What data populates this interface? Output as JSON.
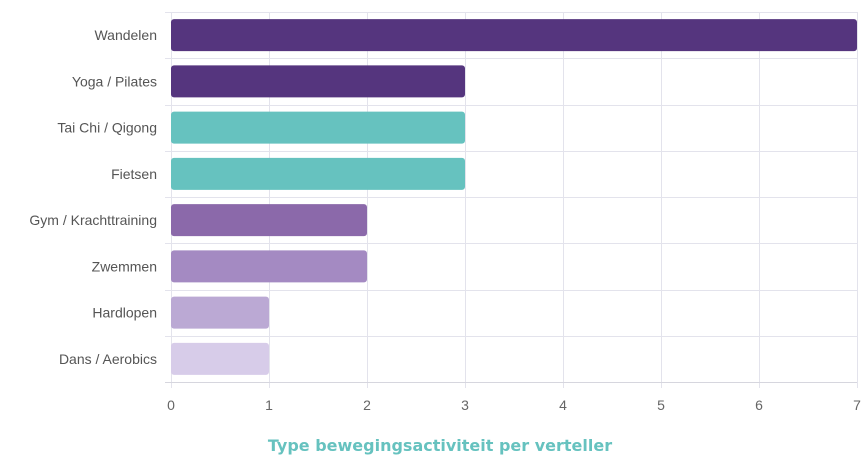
{
  "chart_data": {
    "type": "bar",
    "orientation": "horizontal",
    "title": "",
    "caption": "Type bewegingsactiviteit per verteller",
    "xlabel": "",
    "ylabel": "",
    "categories": [
      "Wandelen",
      "Yoga / Pilates",
      "Tai Chi / Qigong",
      "Fietsen",
      "Gym / Krachttraining",
      "Zwemmen",
      "Hardlopen",
      "Dans / Aerobics"
    ],
    "values": [
      7,
      3,
      3,
      3,
      2,
      2,
      1,
      1
    ],
    "bar_colors": [
      "#55357e",
      "#55357e",
      "#66c2bf",
      "#66c2bf",
      "#8b69aa",
      "#a48ac2",
      "#bba9d4",
      "#d7cce9"
    ],
    "xlim": [
      0,
      7
    ],
    "xticks": [
      "0",
      "1",
      "2",
      "3",
      "4",
      "5",
      "6",
      "7"
    ],
    "grid": true,
    "legend": "none",
    "caption_color": "#66c2bf"
  }
}
